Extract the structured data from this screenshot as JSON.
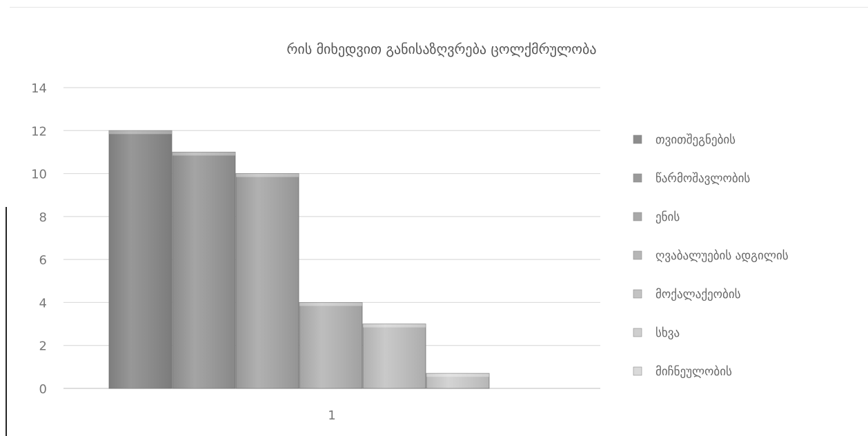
{
  "chart_data": {
    "type": "bar",
    "title": "რის მიხედვით განისაზღვრება ცოლქმრულობა",
    "xlabel": "",
    "ylabel": "",
    "categories": [
      "1"
    ],
    "ylim": [
      0,
      14
    ],
    "yticks": [
      0,
      2,
      4,
      6,
      8,
      10,
      12,
      14
    ],
    "grid": true,
    "legend_position": "right",
    "series": [
      {
        "name": "თვითშეგნების",
        "values": [
          12
        ],
        "color": "#8c8c8c"
      },
      {
        "name": "წარმოშავლობის",
        "values": [
          11
        ],
        "color": "#9a9a9a"
      },
      {
        "name": "ენის",
        "values": [
          10
        ],
        "color": "#a8a8a8"
      },
      {
        "name": "ღვაბალუების ადგილის",
        "values": [
          4
        ],
        "color": "#b6b6b6"
      },
      {
        "name": "მოქალაქეობის",
        "values": [
          3
        ],
        "color": "#c3c3c3"
      },
      {
        "name": "სხვა",
        "values": [
          0.7
        ],
        "color": "#cfcfcf"
      },
      {
        "name": "მიჩნეულობის",
        "values": [
          0
        ],
        "color": "#dadada"
      }
    ]
  }
}
